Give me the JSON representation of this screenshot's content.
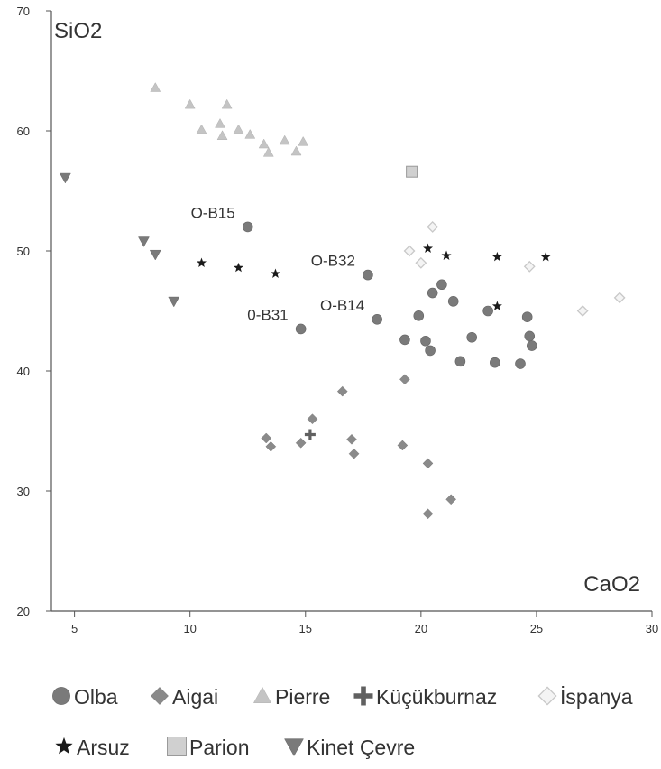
{
  "chart_data": {
    "type": "scatter",
    "xlabel": "CaO2",
    "ylabel": "SiO2",
    "xlim": [
      4,
      30
    ],
    "ylim": [
      20,
      70
    ],
    "x_ticks": [
      5,
      10,
      15,
      20,
      25,
      30
    ],
    "y_ticks": [
      20,
      30,
      40,
      50,
      60,
      70
    ],
    "grid": false,
    "legend_position": "bottom",
    "series": [
      {
        "name": "Olba",
        "marker": "circle",
        "color": "#7a7a7a",
        "points": [
          {
            "x": 12.5,
            "y": 52.0
          },
          {
            "x": 17.7,
            "y": 48.0
          },
          {
            "x": 14.8,
            "y": 43.5
          },
          {
            "x": 18.1,
            "y": 44.3
          },
          {
            "x": 19.3,
            "y": 42.6
          },
          {
            "x": 19.9,
            "y": 44.6
          },
          {
            "x": 20.2,
            "y": 42.5
          },
          {
            "x": 20.4,
            "y": 41.7
          },
          {
            "x": 20.5,
            "y": 46.5
          },
          {
            "x": 20.9,
            "y": 47.2
          },
          {
            "x": 21.4,
            "y": 45.8
          },
          {
            "x": 21.7,
            "y": 40.8
          },
          {
            "x": 22.2,
            "y": 42.8
          },
          {
            "x": 22.9,
            "y": 45.0
          },
          {
            "x": 23.2,
            "y": 40.7
          },
          {
            "x": 24.3,
            "y": 40.6
          },
          {
            "x": 24.6,
            "y": 44.5
          },
          {
            "x": 24.7,
            "y": 42.9
          },
          {
            "x": 24.8,
            "y": 42.1
          }
        ]
      },
      {
        "name": "Aigai",
        "marker": "diamond",
        "color": "#8a8a8a",
        "points": [
          {
            "x": 13.3,
            "y": 34.4
          },
          {
            "x": 13.5,
            "y": 33.7
          },
          {
            "x": 14.8,
            "y": 34.0
          },
          {
            "x": 15.3,
            "y": 36.0
          },
          {
            "x": 16.6,
            "y": 38.3
          },
          {
            "x": 17.0,
            "y": 34.3
          },
          {
            "x": 17.1,
            "y": 33.1
          },
          {
            "x": 19.2,
            "y": 33.8
          },
          {
            "x": 19.3,
            "y": 39.3
          },
          {
            "x": 20.3,
            "y": 32.3
          },
          {
            "x": 20.3,
            "y": 28.1
          },
          {
            "x": 21.3,
            "y": 29.3
          }
        ]
      },
      {
        "name": "Pierre",
        "marker": "triangle-up",
        "color": "#c4c4c4",
        "points": [
          {
            "x": 8.5,
            "y": 63.6
          },
          {
            "x": 10.0,
            "y": 62.2
          },
          {
            "x": 10.5,
            "y": 60.1
          },
          {
            "x": 11.3,
            "y": 60.6
          },
          {
            "x": 11.4,
            "y": 59.6
          },
          {
            "x": 11.6,
            "y": 62.2
          },
          {
            "x": 12.1,
            "y": 60.1
          },
          {
            "x": 12.6,
            "y": 59.7
          },
          {
            "x": 13.2,
            "y": 58.9
          },
          {
            "x": 13.4,
            "y": 58.2
          },
          {
            "x": 14.1,
            "y": 59.2
          },
          {
            "x": 14.6,
            "y": 58.3
          },
          {
            "x": 14.9,
            "y": 59.1
          }
        ]
      },
      {
        "name": "Küçükburnaz",
        "marker": "plus",
        "color": "#606060",
        "points": [
          {
            "x": 15.2,
            "y": 34.7
          }
        ]
      },
      {
        "name": "İspanya",
        "marker": "diamond-open",
        "color": "#c8c8c8",
        "points": [
          {
            "x": 19.5,
            "y": 50.0
          },
          {
            "x": 20.0,
            "y": 49.0
          },
          {
            "x": 20.5,
            "y": 52.0
          },
          {
            "x": 24.7,
            "y": 48.7
          },
          {
            "x": 27.0,
            "y": 45.0
          },
          {
            "x": 28.6,
            "y": 46.1
          }
        ]
      },
      {
        "name": "Arsuz",
        "marker": "star",
        "color": "#1a1a1a",
        "points": [
          {
            "x": 10.5,
            "y": 49.0
          },
          {
            "x": 12.1,
            "y": 48.6
          },
          {
            "x": 13.7,
            "y": 48.1
          },
          {
            "x": 20.3,
            "y": 50.2
          },
          {
            "x": 21.1,
            "y": 49.6
          },
          {
            "x": 23.3,
            "y": 49.5
          },
          {
            "x": 23.3,
            "y": 45.4
          },
          {
            "x": 25.4,
            "y": 49.5
          }
        ]
      },
      {
        "name": "Parion",
        "marker": "square",
        "color": "#d0d0d0",
        "points": [
          {
            "x": 19.6,
            "y": 56.6
          }
        ]
      },
      {
        "name": "Kinet Çevre",
        "marker": "triangle-down",
        "color": "#7a7a7a",
        "points": [
          {
            "x": 4.6,
            "y": 56.1
          },
          {
            "x": 8.0,
            "y": 50.8
          },
          {
            "x": 8.5,
            "y": 49.7
          },
          {
            "x": 9.3,
            "y": 45.8
          }
        ]
      }
    ],
    "annotations": [
      {
        "text": "O-B15",
        "x": 12.5,
        "y": 52.0
      },
      {
        "text": "O-B32",
        "x": 17.7,
        "y": 48.0
      },
      {
        "text": "0-B31",
        "x": 14.8,
        "y": 43.5
      },
      {
        "text": "O-B14",
        "x": 18.1,
        "y": 44.3
      }
    ]
  }
}
